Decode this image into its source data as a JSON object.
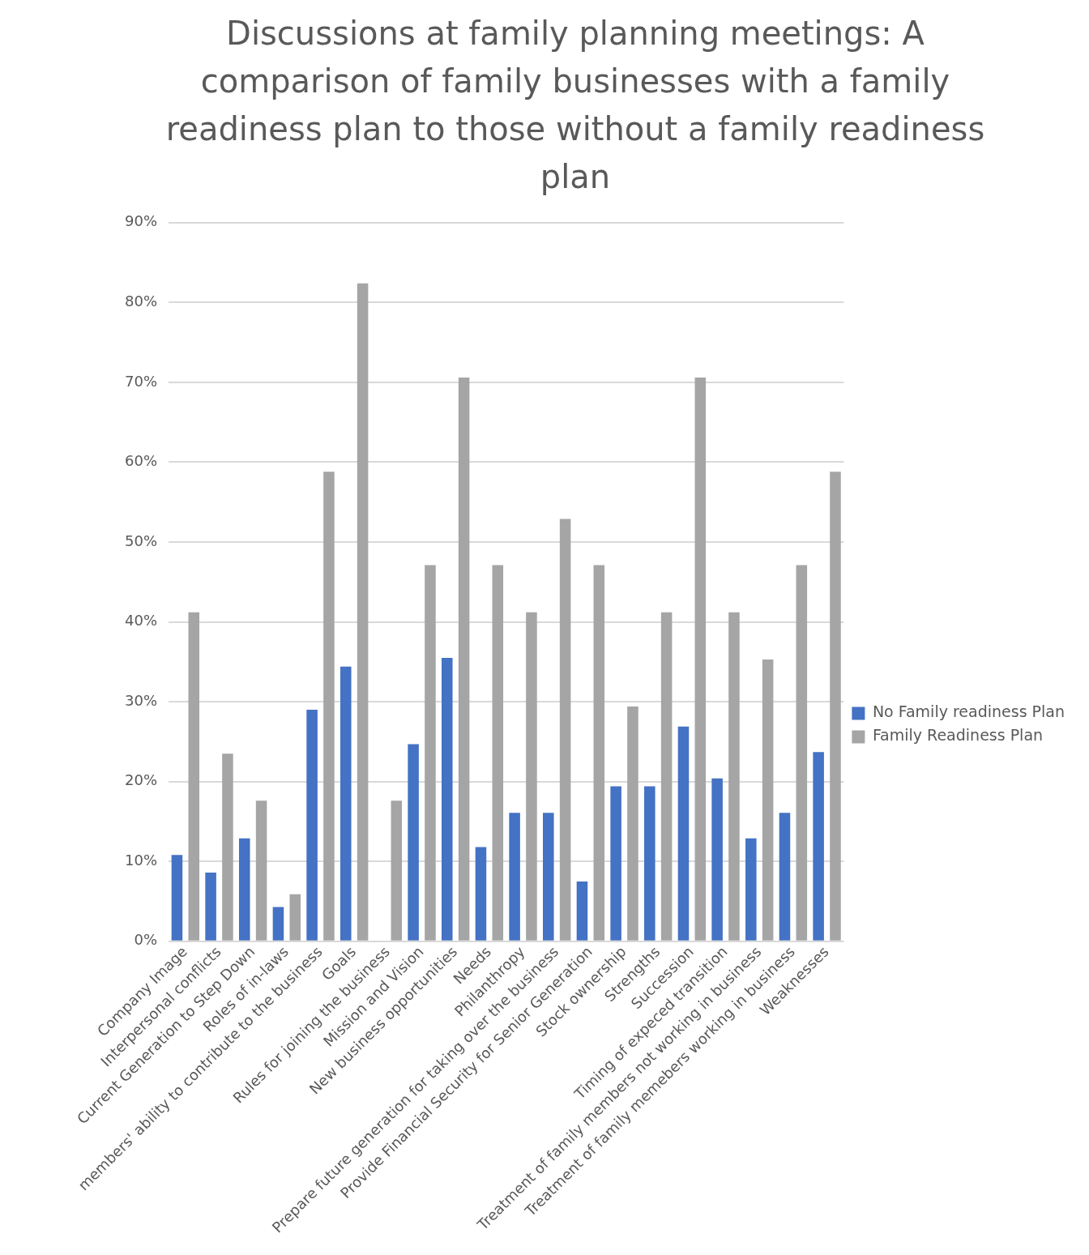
{
  "chart_data": {
    "type": "bar",
    "title": "Discussions at family planning meetings: A comparison of family businesses with a family readiness plan to those without a family readiness plan",
    "categories": [
      "Company Image",
      "Interpersonal conflicts",
      "Current Generation to Step Down",
      "Roles of in-laws",
      "members' ability to contribute to the business",
      "Goals",
      "Rules for joining the business",
      "Mission and Vision",
      "New business opportunities",
      "Needs",
      "Philanthropy",
      "Prepare future generation for taking over the business",
      "Provide Financial Security for Senior Generation",
      "Stock ownership",
      "Strengths",
      "Succession",
      "Timing of expeced transition",
      "Treatment of family members not working in business",
      "Treatment of family memebers working in business",
      "Weaknesses"
    ],
    "series": [
      {
        "name": "No Family readiness Plan",
        "color": "#4472c4",
        "values": [
          10.8,
          8.6,
          12.9,
          4.3,
          29.0,
          34.4,
          0,
          24.7,
          35.5,
          11.8,
          16.1,
          16.1,
          7.5,
          19.4,
          19.4,
          26.9,
          20.4,
          12.9,
          16.1,
          23.7
        ]
      },
      {
        "name": "Family Readiness Plan",
        "color": "#a5a5a5",
        "values": [
          41.2,
          23.5,
          17.6,
          5.9,
          58.8,
          82.4,
          17.6,
          47.1,
          70.6,
          47.1,
          41.2,
          52.9,
          47.1,
          29.4,
          41.2,
          70.6,
          41.2,
          35.3,
          47.1,
          58.8
        ]
      }
    ],
    "ylim": [
      0,
      90
    ],
    "yticks": [
      {
        "value": 0,
        "label": "0%"
      },
      {
        "value": 10,
        "label": "10%"
      },
      {
        "value": 20,
        "label": "20%"
      },
      {
        "value": 30,
        "label": "30%"
      },
      {
        "value": 40,
        "label": "40%"
      },
      {
        "value": 50,
        "label": "50%"
      },
      {
        "value": 60,
        "label": "60%"
      },
      {
        "value": 70,
        "label": "70%"
      },
      {
        "value": 80,
        "label": "80%"
      },
      {
        "value": 90,
        "label": "90%"
      }
    ],
    "grid": "y",
    "legend": "right"
  }
}
